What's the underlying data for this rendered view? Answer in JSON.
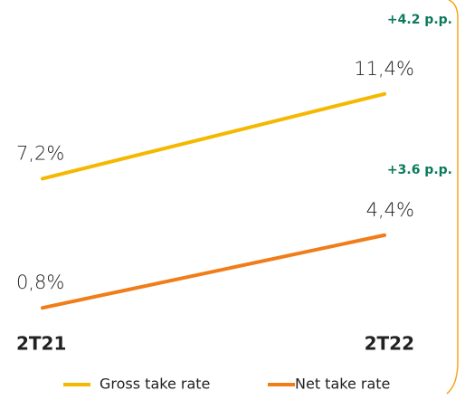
{
  "chart_data": {
    "type": "line",
    "categories": [
      "2T21",
      "2T22"
    ],
    "series": [
      {
        "name": "Gross take rate",
        "color": "#f5b800",
        "values": [
          7.2,
          11.4
        ],
        "value_labels": [
          "7,2%",
          "11,4%"
        ],
        "annotation": "+4.2 p.p."
      },
      {
        "name": "Net take rate",
        "color": "#f07d1a",
        "values": [
          0.8,
          4.4
        ],
        "value_labels": [
          "0,8%",
          "4,4%"
        ],
        "annotation": "+3.6 p.p."
      }
    ]
  }
}
